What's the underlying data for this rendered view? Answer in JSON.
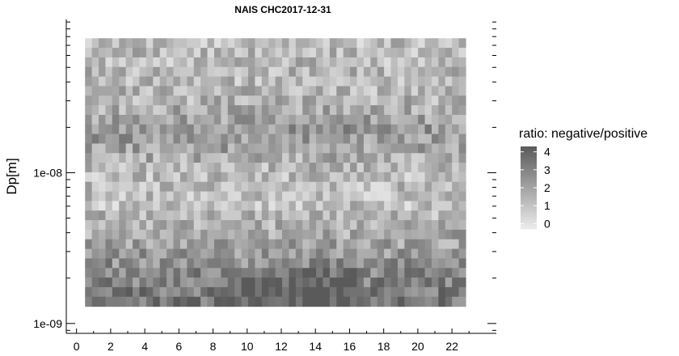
{
  "chart_data": {
    "type": "heatmap",
    "title": "NAIS CHC2017-12-31",
    "xlabel": "",
    "ylabel": "Dp[m]",
    "x_ticks": [
      0,
      2,
      4,
      6,
      8,
      10,
      12,
      14,
      16,
      18,
      20,
      22
    ],
    "x_tick_labels": [
      "0",
      "2",
      "4",
      "6",
      "8",
      "10",
      "12",
      "14",
      "16",
      "18",
      "20",
      "22"
    ],
    "y_scale": "log",
    "y_ticks": [
      1e-09,
      1e-08
    ],
    "y_tick_labels": [
      "1e-09",
      "1e-08"
    ],
    "xlim": [
      -0.6,
      24.6
    ],
    "ylim": [
      8.6e-10,
      1.04e-07
    ],
    "time_range_hours": [
      0.5,
      22.8
    ],
    "diameter_range_m": [
      1.3e-09,
      7.8e-08
    ],
    "legend": {
      "title": "ratio: negative/positive",
      "ticks": [
        0,
        1,
        2,
        3,
        4
      ],
      "tick_labels": [
        "0",
        "1",
        "2",
        "3",
        "4"
      ],
      "range": [
        -0.3,
        4.3
      ],
      "low_color": "#ececec",
      "high_color": "#5a5a5a",
      "placement": "right"
    },
    "n_time_bins": 56,
    "n_diameter_bins": 28,
    "value_profile_by_diameter_row_top_to_bottom": [
      1.2,
      1.3,
      1.3,
      1.4,
      1.3,
      1.4,
      1.5,
      1.7,
      2.0,
      2.3,
      2.2,
      2.0,
      1.7,
      1.4,
      1.2,
      1.2,
      1.1,
      1.1,
      1.4,
      1.6,
      1.8,
      2.0,
      2.3,
      2.6,
      2.8,
      3.0,
      3.2,
      3.4
    ]
  }
}
